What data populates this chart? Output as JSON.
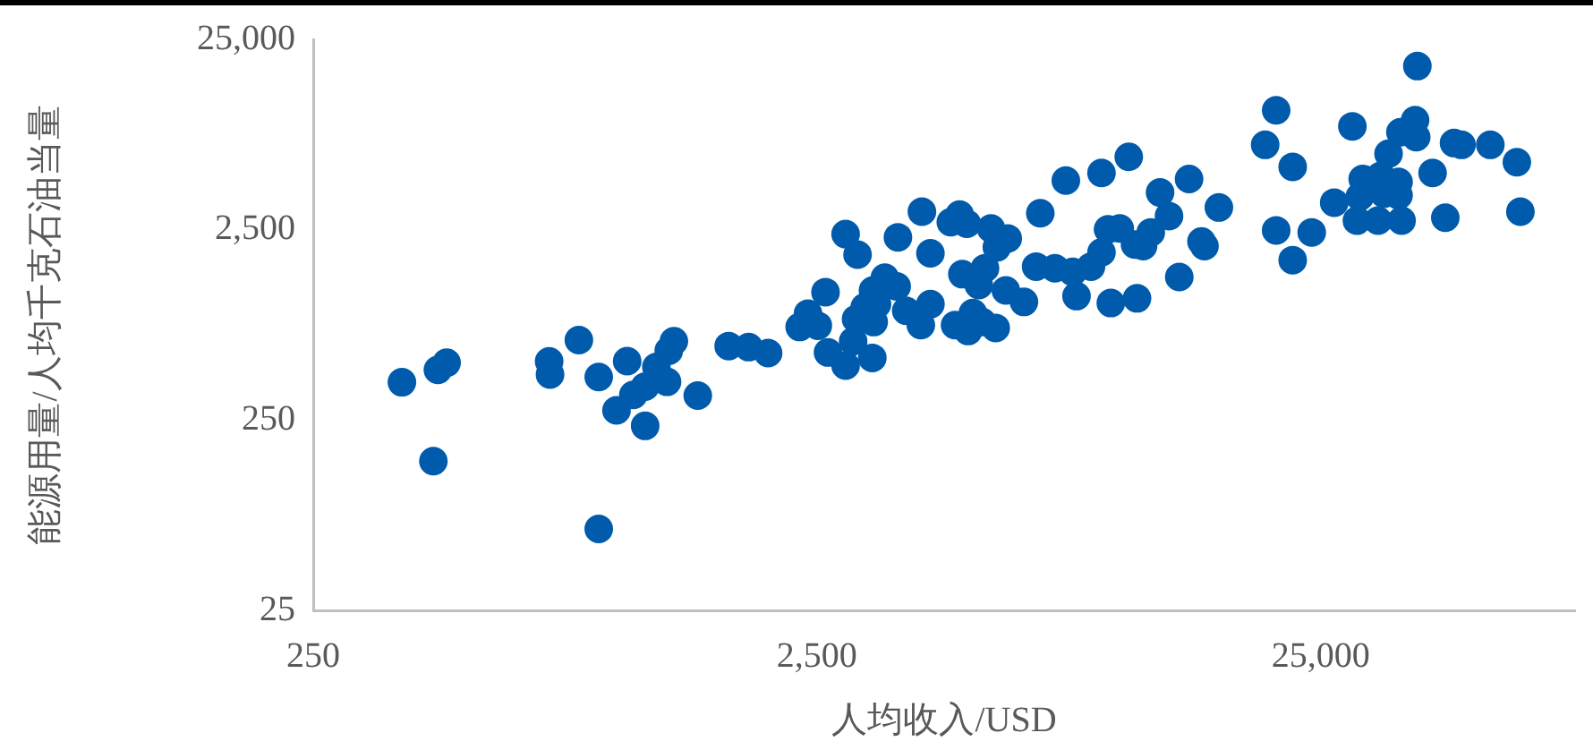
{
  "chart_data": {
    "type": "scatter",
    "xlabel": "人均收入/USD",
    "ylabel": "能源用量/人均千克石油当量",
    "log": "xy",
    "grid": false,
    "legend": false,
    "marker": "circle",
    "xlim": [
      250,
      80000
    ],
    "xticks": [
      250,
      {
        "value": 2500,
        "label": "2,500"
      },
      {
        "value": 25000,
        "label": "25,000"
      }
    ],
    "ylim": [
      25,
      25000
    ],
    "yticks": [
      25,
      250,
      {
        "value": 2500,
        "label": "2,500"
      },
      {
        "value": 25000,
        "label": "25,000"
      }
    ],
    "series": [
      {
        "color": "#005bac",
        "x": [
          375,
          442,
          460,
          433,
          735,
          738,
          842,
          922,
          922,
          1050,
          1000,
          1080,
          1140,
          1140,
          1200,
          1260,
          1270,
          1300,
          1450,
          1670,
          1830,
          2000,
          2310,
          2400,
          2510,
          2600,
          2630,
          2850,
          2850,
          3010,
          2950,
          3220,
          2990,
          3110,
          3230,
          3240,
          3290,
          3410,
          3600,
          3620,
          3760,
          4040,
          4020,
          4200,
          4200,
          4610,
          4800,
          4960,
          5540,
          5980,
          5690,
          4860,
          5390,
          5240,
          4700,
          4990,
          5100,
          5320,
          5660,
          5930,
          6440,
          6940,
          6810,
          7420,
          8050,
          8750,
          7800,
          8190,
          9180,
          10400,
          9180,
          9460,
          9980,
          9580,
          10800,
          10700,
          11100,
          11500,
          12000,
          12500,
          13100,
          13700,
          14500,
          14700,
          15700,
          19400,
          20400,
          22000,
          20400,
          22000,
          24000,
          26600,
          28900,
          29500,
          30300,
          29900,
          32500,
          32900,
          33400,
          34100,
          36200,
          36000,
          35700,
          35700,
          38500,
          38700,
          38900,
          41700,
          44200,
          46000,
          47600,
          54300,
          61300,
          62300
        ],
        "values": [
          395,
          459,
          500,
          152,
          508,
          434,
          658,
          421,
          67,
          510,
          281,
          339,
          233,
          375,
          475,
          397,
          578,
          649,
          336,
          612,
          604,
          562,
          771,
          906,
          783,
          1175,
          566,
          483,
          2370,
          1850,
          649,
          530,
          849,
          979,
          1200,
          818,
          1016,
          1400,
          1260,
          2280,
          937,
          3110,
          788,
          1880,
          1016,
          2740,
          3000,
          2690,
          2540,
          2250,
          2020,
          1460,
          1570,
          1280,
          788,
          734,
          912,
          818,
          762,
          1200,
          1044,
          3050,
          1600,
          1570,
          1500,
          1600,
          4530,
          1120,
          4970,
          6040,
          1900,
          2510,
          2540,
          1030,
          1090,
          2090,
          2050,
          2420,
          3920,
          2950,
          1410,
          4620,
          2170,
          2050,
          3270,
          6980,
          10600,
          5350,
          2480,
          1730,
          2420,
          3470,
          8730,
          2790,
          4620,
          3730,
          2790,
          4800,
          3860,
          6270,
          2790,
          8130,
          4460,
          3790,
          9400,
          7660,
          18100,
          4970,
          2890,
          7130,
          6980,
          6980,
          5660,
          3110
        ]
      }
    ]
  }
}
